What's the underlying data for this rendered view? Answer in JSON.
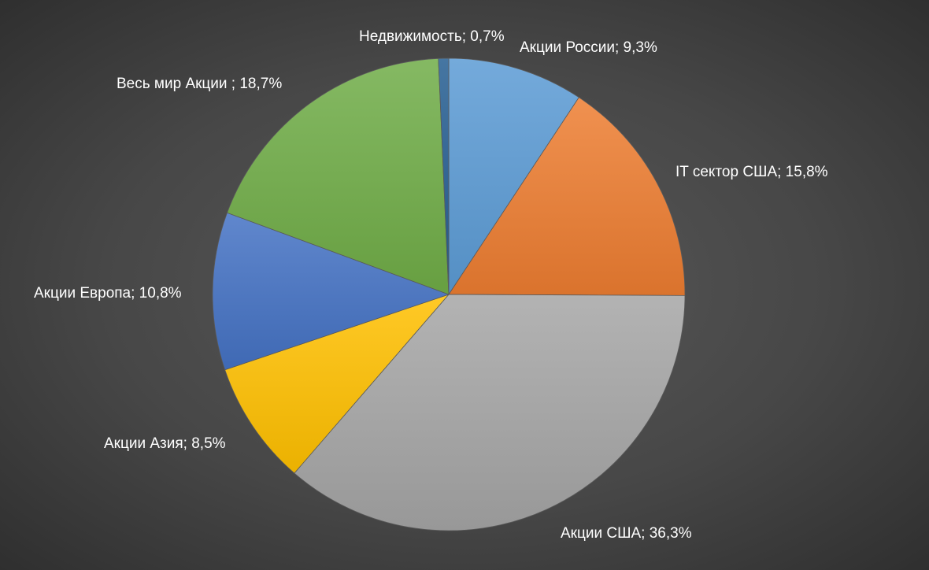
{
  "chart_data": {
    "type": "pie",
    "slices": [
      {
        "name": "Акции России",
        "value": 9.3,
        "label": "Акции России; 9,3%",
        "color": "#5b9bd5"
      },
      {
        "name": "IT сектор США",
        "value": 15.8,
        "label": "IT сектор США; 15,8%",
        "color": "#ed7d31"
      },
      {
        "name": "Акции США",
        "value": 36.3,
        "label": "Акции США; 36,3%",
        "color": "#a5a5a5"
      },
      {
        "name": "Акции Азия",
        "value": 8.5,
        "label": "Акции Азия; 8,5%",
        "color": "#ffc000"
      },
      {
        "name": "Акции Европа",
        "value": 10.8,
        "label": "Акции Европа; 10,8%",
        "color": "#4472c4"
      },
      {
        "name": "Весь мир Акции ",
        "value": 18.7,
        "label": "Весь мир Акции ; 18,7%",
        "color": "#70ad47"
      },
      {
        "name": "Недвижимость",
        "value": 0.7,
        "label": "Недвижимость; 0,7%",
        "color": "#255e91"
      }
    ],
    "start_angle": "12 o'clock",
    "direction": "clockwise",
    "legend": "none",
    "data_labels": "outside end"
  }
}
